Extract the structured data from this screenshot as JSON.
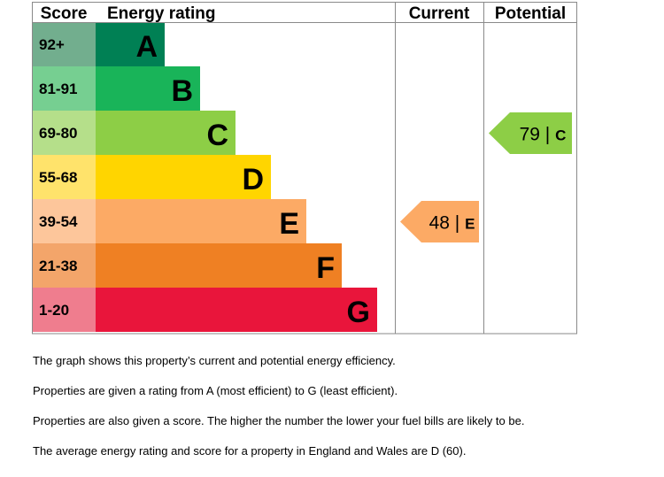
{
  "chart_data": {
    "type": "epc-rating",
    "headers": {
      "score": "Score",
      "rating": "Energy rating",
      "current": "Current",
      "potential": "Potential"
    },
    "bands": [
      {
        "letter": "A",
        "range": "92+",
        "color": "#008054",
        "score_color": "#72ae8e"
      },
      {
        "letter": "B",
        "range": "81-91",
        "color": "#19b459",
        "score_color": "#76cf91"
      },
      {
        "letter": "C",
        "range": "69-80",
        "color": "#8dce46",
        "score_color": "#b5df8a"
      },
      {
        "letter": "D",
        "range": "55-68",
        "color": "#ffd500",
        "score_color": "#ffe36b"
      },
      {
        "letter": "E",
        "range": "39-54",
        "color": "#fcaa65",
        "score_color": "#fdc69b"
      },
      {
        "letter": "F",
        "range": "21-38",
        "color": "#ef8023",
        "score_color": "#f3a56a"
      },
      {
        "letter": "G",
        "range": "1-20",
        "color": "#e9153b",
        "score_color": "#ef7d8e"
      }
    ],
    "current": {
      "score": 48,
      "band": "E",
      "text": "48 | ",
      "color": "#fcaa65"
    },
    "potential": {
      "score": 79,
      "band": "C",
      "text": "79 | ",
      "color": "#8dce46"
    }
  },
  "notes": [
    "The graph shows this property’s current and potential energy efficiency.",
    "Properties are given a rating from A (most efficient) to G (least efficient).",
    "Properties are also given a score. The higher the number the lower your fuel bills are likely to be.",
    "The average energy rating and score for a property in England and Wales are D (60)."
  ]
}
